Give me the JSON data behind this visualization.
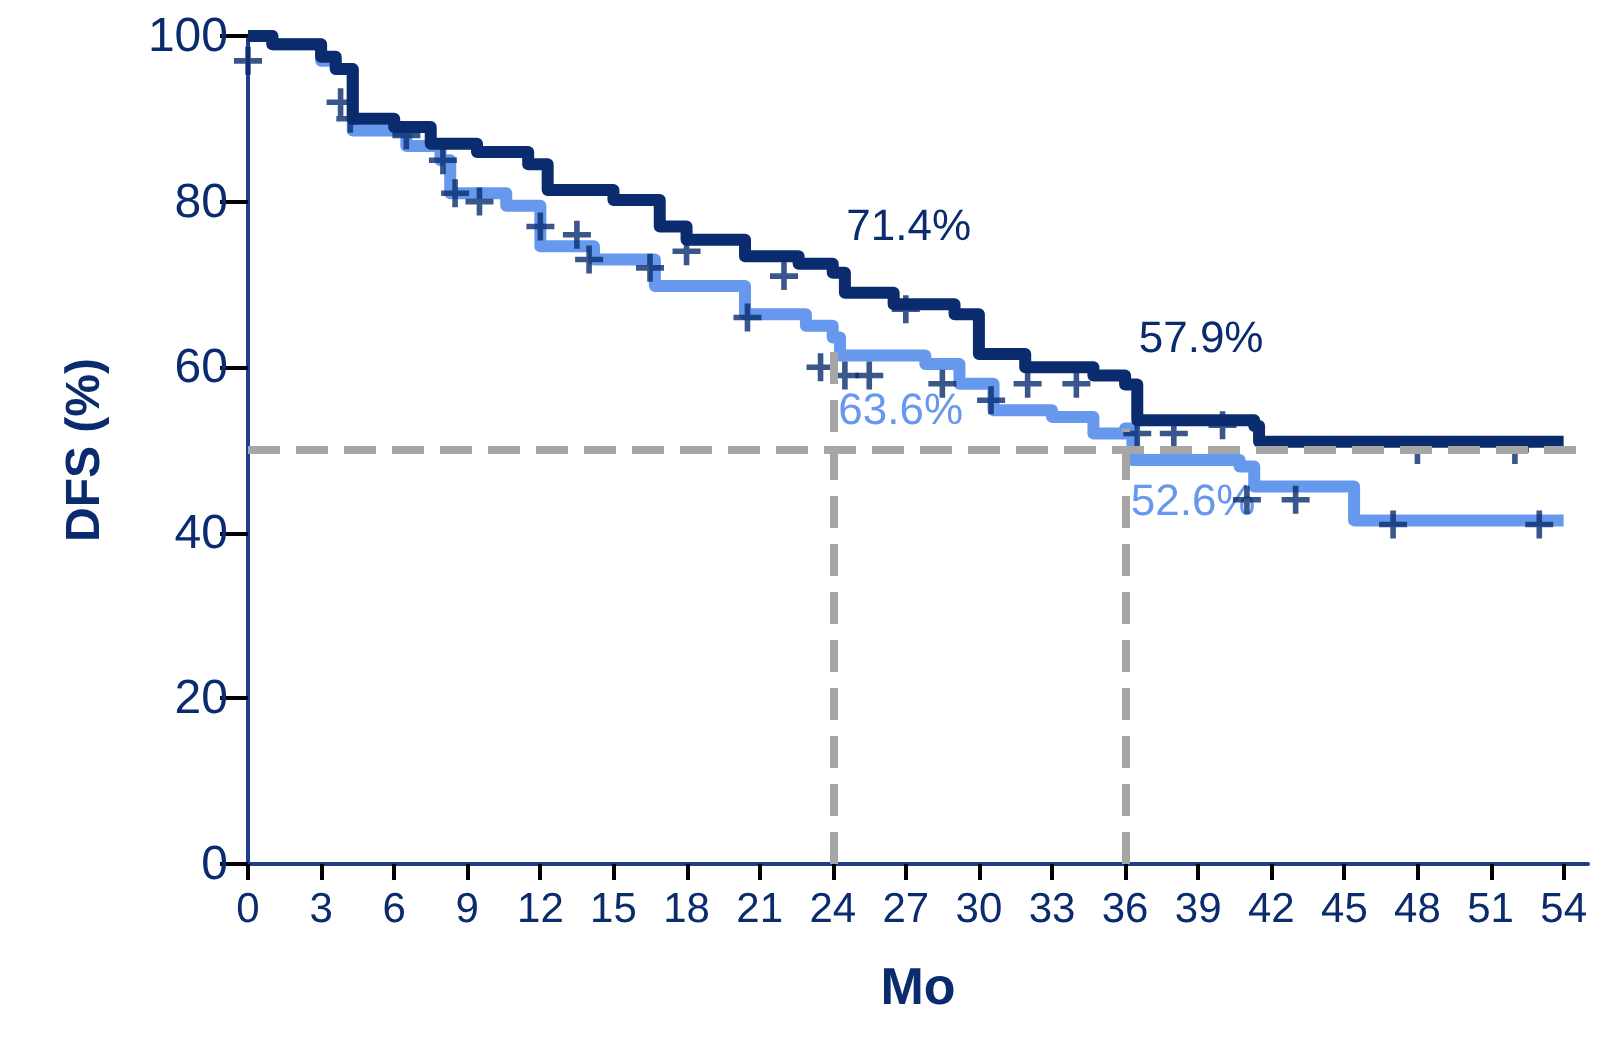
{
  "chart_data": {
    "type": "step",
    "xlabel": "Mo",
    "ylabel": "DFS (%)",
    "xlim": [
      0,
      55
    ],
    "xticks": [
      0,
      3,
      6,
      9,
      12,
      15,
      18,
      21,
      24,
      27,
      30,
      33,
      36,
      39,
      42,
      45,
      48,
      51,
      54
    ],
    "ylim": [
      0,
      100
    ],
    "yticks": [
      0,
      20,
      40,
      60,
      80,
      100
    ],
    "grid": false,
    "series": [
      {
        "color": "#6699ee",
        "x": [
          0,
          1,
          3,
          3.6,
          4.3,
          6.5,
          7.9,
          8.3,
          10.6,
          12,
          14.2,
          16.7,
          20.4,
          22.9,
          24,
          24.3,
          27.8,
          29.2,
          30.6,
          33,
          34.7,
          36,
          36.3,
          40.7,
          41.3,
          45.4,
          54
        ],
        "values": [
          100,
          99,
          97,
          96,
          88.6,
          86.7,
          85,
          81,
          79.5,
          74.6,
          73,
          69.8,
          66.4,
          65,
          63.6,
          61.4,
          60.4,
          58,
          54.8,
          54,
          52,
          52.6,
          48.8,
          48,
          45.6,
          41.5,
          41.5
        ],
        "value_labels": [
          null,
          null,
          null,
          null,
          null,
          null,
          null,
          null,
          null,
          null,
          null,
          null,
          null,
          null,
          "63.6%",
          null,
          null,
          null,
          null,
          null,
          null,
          "52.6%",
          null,
          null,
          null,
          null,
          null
        ]
      },
      {
        "color": "#0a2c6e",
        "x": [
          0,
          1,
          3,
          3.6,
          4.3,
          6,
          7.5,
          9.4,
          11.5,
          12.3,
          15,
          16.9,
          18,
          20.4,
          22.6,
          24,
          24.5,
          26.5,
          29,
          30,
          31.9,
          34.7,
          36,
          36.5,
          41.3,
          41.5,
          54
        ],
        "values": [
          100,
          99,
          97.5,
          96,
          90,
          89,
          87,
          86,
          84.5,
          81.4,
          80.2,
          77,
          75.4,
          73.4,
          72.5,
          71.4,
          69,
          67.6,
          66.4,
          61.6,
          60,
          59,
          57.9,
          53.6,
          52.9,
          51,
          51
        ],
        "value_labels": [
          null,
          null,
          null,
          null,
          null,
          null,
          null,
          null,
          null,
          null,
          null,
          null,
          null,
          null,
          null,
          "71.4%",
          null,
          null,
          null,
          null,
          null,
          null,
          "57.9%",
          null,
          null,
          null,
          null
        ]
      },
      {
        "type": "scatter",
        "marker": "cross",
        "color": "#0a2c6e",
        "x": [
          0,
          3.8,
          4.2,
          6.5,
          8,
          8.5,
          9.5,
          12,
          13.5,
          14,
          16.5,
          18,
          20.5,
          22,
          23.5,
          24.5,
          25.5,
          27,
          28.5,
          30.5,
          32,
          34,
          36.5,
          38,
          40,
          41,
          43,
          47,
          48,
          52,
          53
        ],
        "values": [
          97,
          92,
          90,
          88,
          85,
          81,
          80,
          77,
          76,
          73,
          72,
          74,
          66,
          71,
          60,
          59,
          59,
          67,
          58,
          56,
          58,
          58,
          52,
          52,
          53,
          44,
          44,
          41,
          50,
          50,
          41
        ]
      }
    ],
    "ref_lines": [
      {
        "axis": "y",
        "value": 50,
        "color": "#a6a6a6",
        "line_style": "dashed"
      },
      {
        "axis": "x",
        "value": 24,
        "color": "#a6a6a6",
        "line_style": "dashed"
      },
      {
        "axis": "x",
        "value": 36,
        "color": "#a6a6a6",
        "line_style": "dashed"
      }
    ]
  }
}
